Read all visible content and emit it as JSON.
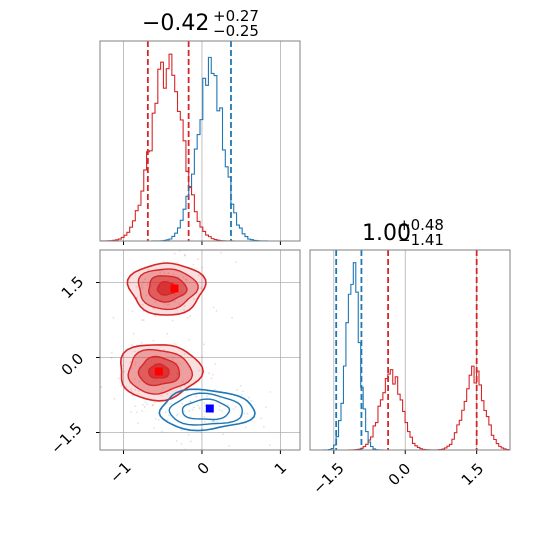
{
  "colors": {
    "red": "#d62728",
    "blue": "#1f77b4",
    "red_marker": "#ff0000",
    "blue_marker": "#0000ff",
    "grid": "#b0b0b0",
    "frame": "#808080"
  },
  "chart_data": [
    {
      "type": "histogram",
      "panel": "marginal-x",
      "title": {
        "value": "−0.42",
        "sup": "+0.27",
        "sub": "−0.25"
      },
      "xlim": [
        -1.3,
        1.25
      ],
      "grid": true,
      "series": [
        {
          "color": "red",
          "center": -0.45,
          "sigma": 0.2,
          "quantiles": [
            -0.69,
            -0.17
          ]
        },
        {
          "color": "blue",
          "center": 0.1,
          "sigma": 0.17,
          "quantiles": [
            0.37
          ]
        }
      ]
    },
    {
      "type": "histogram",
      "panel": "marginal-y",
      "title": {
        "value": "1.00",
        "sup": "+0.48",
        "sub": "−1.41"
      },
      "xlim": [
        -2.0,
        2.2
      ],
      "xticks": [
        "−1.5",
        "0.0",
        "1.5"
      ],
      "grid": true,
      "series": [
        {
          "color": "red",
          "components": [
            {
              "center": -0.3,
              "sigma": 0.22
            },
            {
              "center": 1.45,
              "sigma": 0.22
            }
          ],
          "quantiles": [
            -0.36,
            1.5
          ]
        },
        {
          "color": "blue",
          "center": -1.1,
          "sigma": 0.14,
          "quantiles": [
            -1.45,
            -0.92
          ]
        }
      ]
    },
    {
      "type": "contour",
      "panel": "joint",
      "xlim": [
        -1.3,
        1.25
      ],
      "ylim": [
        -1.85,
        2.15
      ],
      "xticks": [
        "−1",
        "0",
        "1"
      ],
      "yticks": [
        "−1.5",
        "0.0",
        "1.5"
      ],
      "grid": true,
      "series": [
        {
          "color": "red",
          "filled": true,
          "modes": [
            {
              "x": -0.45,
              "y": 1.38,
              "sx": 0.24,
              "sy": 0.26
            },
            {
              "x": -0.55,
              "y": -0.28,
              "sx": 0.26,
              "sy": 0.28
            }
          ],
          "markers": [
            {
              "x": -0.35,
              "y": 1.38
            },
            {
              "x": -0.55,
              "y": -0.28
            }
          ]
        },
        {
          "color": "blue",
          "filled": false,
          "modes": [
            {
              "x": 0.05,
              "y": -1.05,
              "sx": 0.3,
              "sy": 0.2
            }
          ],
          "markers": [
            {
              "x": 0.1,
              "y": -1.02
            }
          ]
        }
      ]
    }
  ]
}
